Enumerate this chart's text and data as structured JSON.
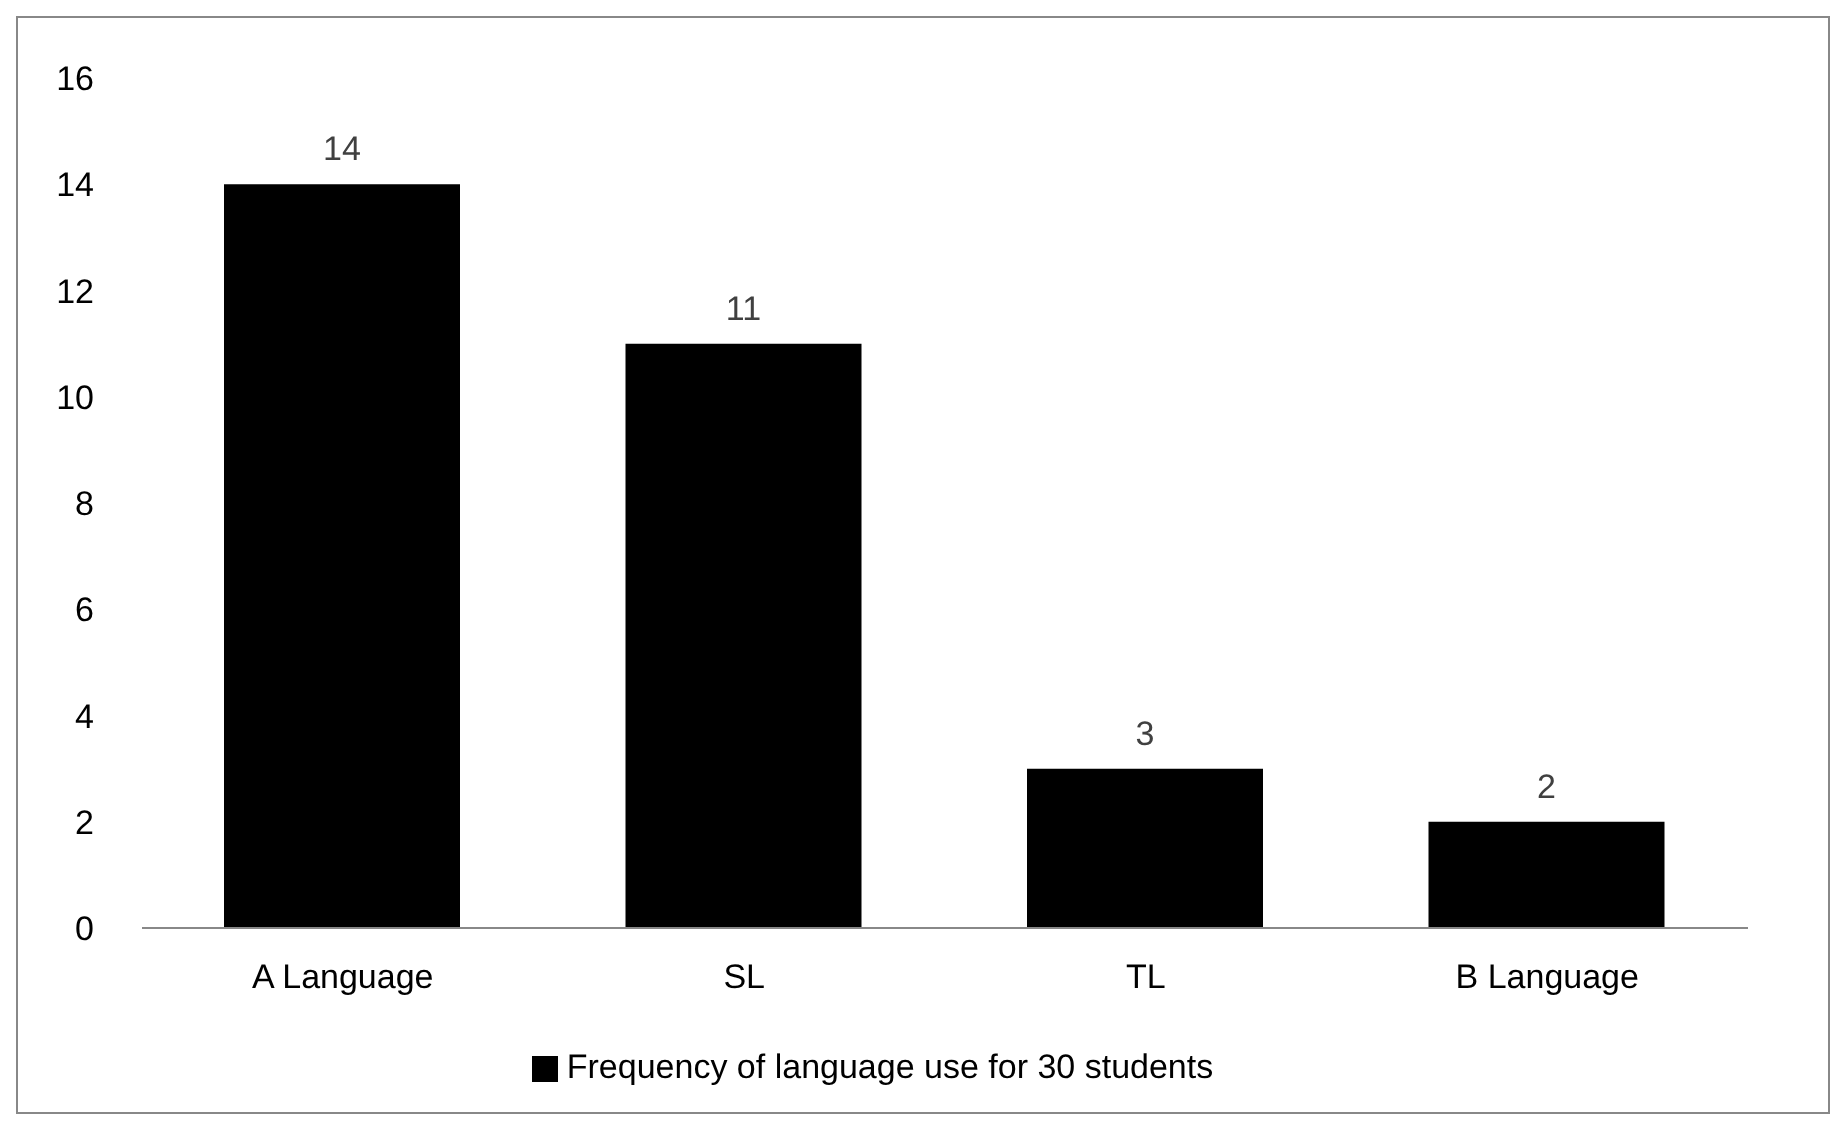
{
  "chart_data": {
    "type": "bar",
    "categories": [
      "A Language",
      "SL",
      "TL",
      "B Language"
    ],
    "series": [
      {
        "name": "Frequency of language use for 30 students",
        "color": "#000000",
        "values": [
          14,
          11,
          3,
          2
        ]
      }
    ],
    "ylim": [
      0,
      16
    ],
    "yticks": [
      0,
      2,
      4,
      6,
      8,
      10,
      12,
      14,
      16
    ],
    "grid": false,
    "legend": "bottom",
    "data_labels": true
  }
}
